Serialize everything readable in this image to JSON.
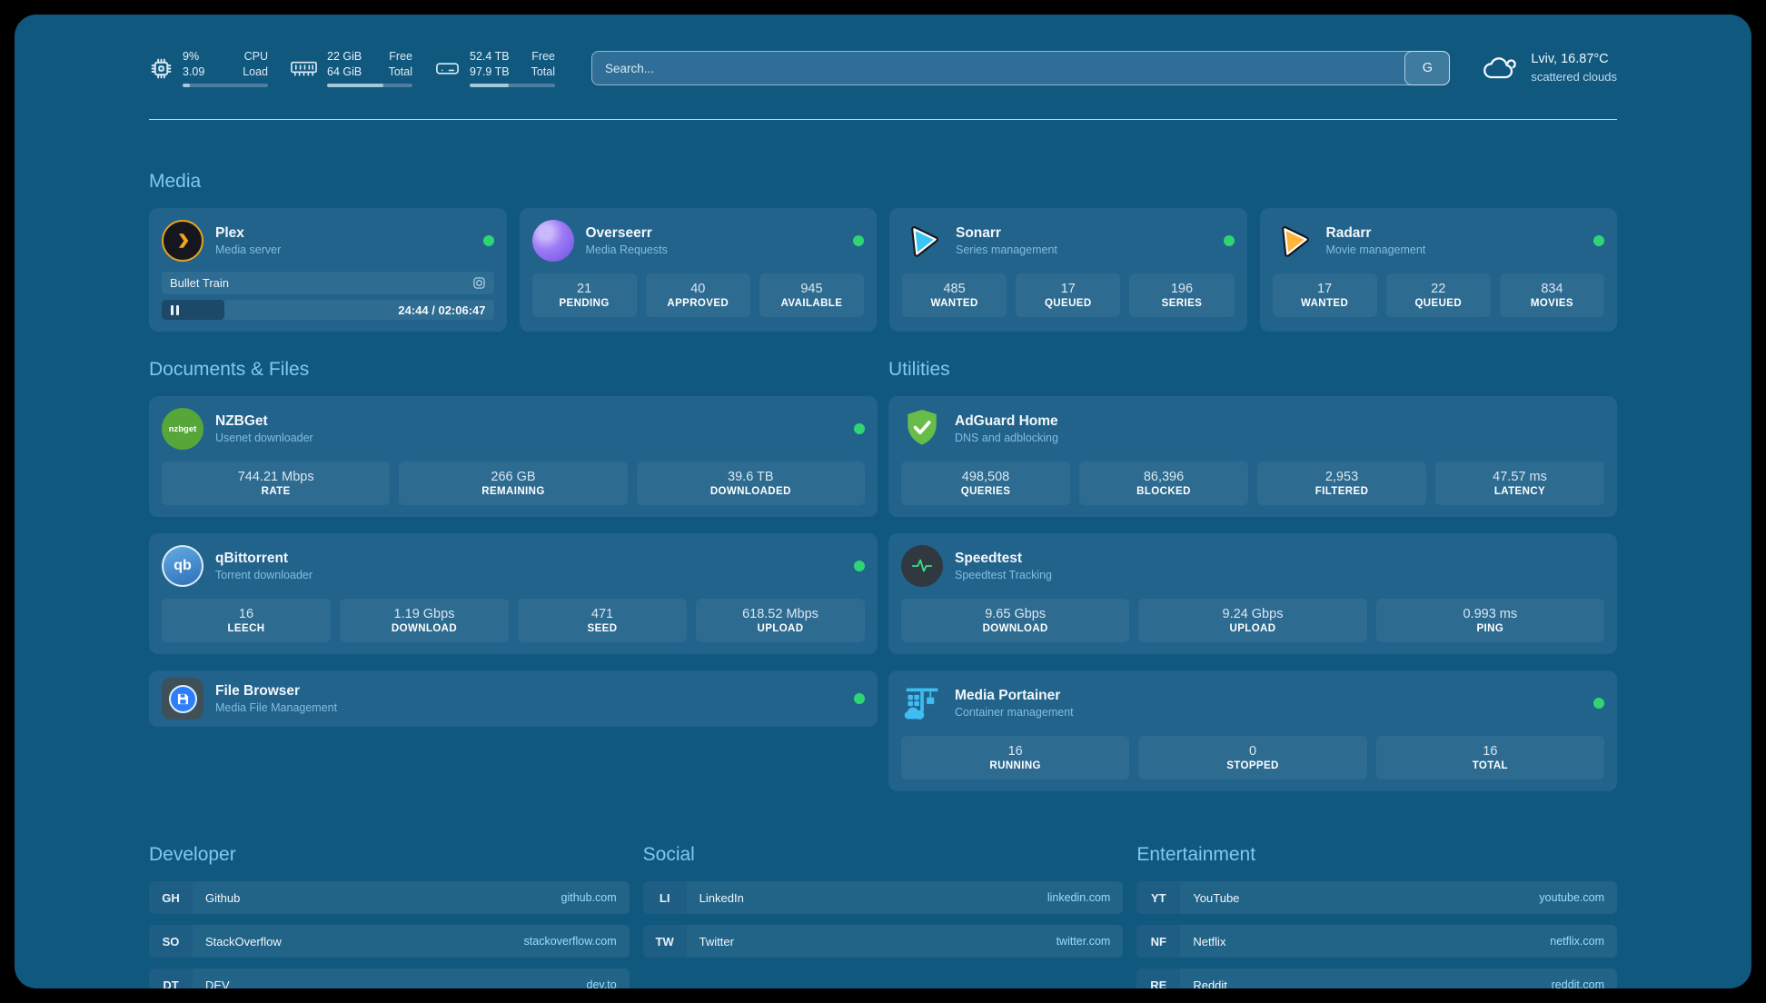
{
  "colors": {
    "background": "#11587F",
    "card": "#22638B",
    "heading": "#80C8ED",
    "status_green": "#2FD573",
    "plex_accent": "#E6A11C",
    "sonarr_blue": "#38C6F4",
    "radarr_orange": "#FFB53C",
    "adguard_green": "#68BC49",
    "nzbget_green": "#57A639",
    "portainer_blue": "#3DBDF2",
    "speedtest_pulse": "#41D98D"
  },
  "header": {
    "stats": [
      {
        "icon": "cpu-icon",
        "value1": "9%",
        "value2": "3.09",
        "label1": "CPU",
        "label2": "Load",
        "progress_pct": 9
      },
      {
        "icon": "memory-icon",
        "value1": "22 GiB",
        "value2": "64 GiB",
        "label1": "Free",
        "label2": "Total",
        "progress_pct": 66
      },
      {
        "icon": "disk-icon",
        "value1": "52.4 TB",
        "value2": "97.9 TB",
        "label1": "Free",
        "label2": "Total",
        "progress_pct": 46
      }
    ],
    "search": {
      "placeholder": "Search...",
      "button_label": "G"
    },
    "weather": {
      "location": "Lviv, 16.87°C",
      "condition": "scattered clouds"
    }
  },
  "media": {
    "title": "Media",
    "plex": {
      "title": "Plex",
      "subtitle": "Media server",
      "now_playing": "Bullet Train",
      "time": "24:44 / 02:06:47",
      "progress_pct": 19
    },
    "overseerr": {
      "title": "Overseerr",
      "subtitle": "Media Requests",
      "stats": [
        {
          "value": "21",
          "label": "PENDING"
        },
        {
          "value": "40",
          "label": "APPROVED"
        },
        {
          "value": "945",
          "label": "AVAILABLE"
        }
      ]
    },
    "sonarr": {
      "title": "Sonarr",
      "subtitle": "Series management",
      "stats": [
        {
          "value": "485",
          "label": "WANTED"
        },
        {
          "value": "17",
          "label": "QUEUED"
        },
        {
          "value": "196",
          "label": "SERIES"
        }
      ]
    },
    "radarr": {
      "title": "Radarr",
      "subtitle": "Movie management",
      "stats": [
        {
          "value": "17",
          "label": "WANTED"
        },
        {
          "value": "22",
          "label": "QUEUED"
        },
        {
          "value": "834",
          "label": "MOVIES"
        }
      ]
    }
  },
  "documents": {
    "title": "Documents & Files",
    "nzbget": {
      "title": "NZBGet",
      "subtitle": "Usenet downloader",
      "stats": [
        {
          "value": "744.21 Mbps",
          "label": "RATE"
        },
        {
          "value": "266 GB",
          "label": "REMAINING"
        },
        {
          "value": "39.6 TB",
          "label": "DOWNLOADED"
        }
      ]
    },
    "qbittorrent": {
      "title": "qBittorrent",
      "subtitle": "Torrent downloader",
      "stats": [
        {
          "value": "16",
          "label": "LEECH"
        },
        {
          "value": "1.19 Gbps",
          "label": "DOWNLOAD"
        },
        {
          "value": "471",
          "label": "SEED"
        },
        {
          "value": "618.52 Mbps",
          "label": "UPLOAD"
        }
      ]
    },
    "filebrowser": {
      "title": "File Browser",
      "subtitle": "Media File Management"
    }
  },
  "utilities": {
    "title": "Utilities",
    "adguard": {
      "title": "AdGuard Home",
      "subtitle": "DNS and adblocking",
      "stats": [
        {
          "value": "498,508",
          "label": "QUERIES"
        },
        {
          "value": "86,396",
          "label": "BLOCKED"
        },
        {
          "value": "2,953",
          "label": "FILTERED"
        },
        {
          "value": "47.57 ms",
          "label": "LATENCY"
        }
      ]
    },
    "speedtest": {
      "title": "Speedtest",
      "subtitle": "Speedtest Tracking",
      "stats": [
        {
          "value": "9.65 Gbps",
          "label": "DOWNLOAD"
        },
        {
          "value": "9.24 Gbps",
          "label": "UPLOAD"
        },
        {
          "value": "0.993 ms",
          "label": "PING"
        }
      ]
    },
    "portainer": {
      "title": "Media Portainer",
      "subtitle": "Container management",
      "stats": [
        {
          "value": "16",
          "label": "RUNNING"
        },
        {
          "value": "0",
          "label": "STOPPED"
        },
        {
          "value": "16",
          "label": "TOTAL"
        }
      ]
    }
  },
  "bookmarks": {
    "developer": {
      "title": "Developer",
      "links": [
        {
          "abbr": "GH",
          "name": "Github",
          "url": "github.com"
        },
        {
          "abbr": "SO",
          "name": "StackOverflow",
          "url": "stackoverflow.com"
        },
        {
          "abbr": "DT",
          "name": "DEV",
          "url": "dev.to"
        }
      ]
    },
    "social": {
      "title": "Social",
      "links": [
        {
          "abbr": "LI",
          "name": "LinkedIn",
          "url": "linkedin.com"
        },
        {
          "abbr": "TW",
          "name": "Twitter",
          "url": "twitter.com"
        }
      ]
    },
    "entertainment": {
      "title": "Entertainment",
      "links": [
        {
          "abbr": "YT",
          "name": "YouTube",
          "url": "youtube.com"
        },
        {
          "abbr": "NF",
          "name": "Netflix",
          "url": "netflix.com"
        },
        {
          "abbr": "RE",
          "name": "Reddit",
          "url": "reddit.com"
        }
      ]
    }
  }
}
